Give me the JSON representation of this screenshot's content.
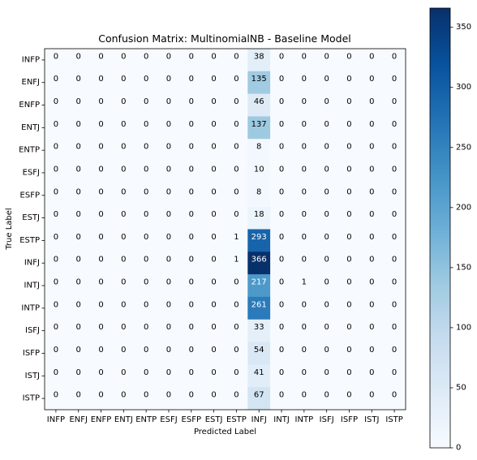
{
  "chart_data": {
    "type": "heatmap",
    "title": "Confusion Matrix: MultinomialNB - Baseline Model",
    "xlabel": "Predicted Label",
    "ylabel": "True Label",
    "x_categories": [
      "INFP",
      "ENFJ",
      "ENFP",
      "ENTJ",
      "ENTP",
      "ESFJ",
      "ESFP",
      "ESTJ",
      "ESTP",
      "INFJ",
      "INTJ",
      "INTP",
      "ISFJ",
      "ISFP",
      "ISTJ",
      "ISTP"
    ],
    "y_categories": [
      "INFP",
      "ENFJ",
      "ENFP",
      "ENTJ",
      "ENTP",
      "ESFJ",
      "ESFP",
      "ESTJ",
      "ESTP",
      "INFJ",
      "INTJ",
      "INTP",
      "ISFJ",
      "ISFP",
      "ISTJ",
      "ISTP"
    ],
    "matrix": [
      [
        0,
        0,
        0,
        0,
        0,
        0,
        0,
        0,
        0,
        38,
        0,
        0,
        0,
        0,
        0,
        0
      ],
      [
        0,
        0,
        0,
        0,
        0,
        0,
        0,
        0,
        0,
        135,
        0,
        0,
        0,
        0,
        0,
        0
      ],
      [
        0,
        0,
        0,
        0,
        0,
        0,
        0,
        0,
        0,
        46,
        0,
        0,
        0,
        0,
        0,
        0
      ],
      [
        0,
        0,
        0,
        0,
        0,
        0,
        0,
        0,
        0,
        137,
        0,
        0,
        0,
        0,
        0,
        0
      ],
      [
        0,
        0,
        0,
        0,
        0,
        0,
        0,
        0,
        0,
        8,
        0,
        0,
        0,
        0,
        0,
        0
      ],
      [
        0,
        0,
        0,
        0,
        0,
        0,
        0,
        0,
        0,
        10,
        0,
        0,
        0,
        0,
        0,
        0
      ],
      [
        0,
        0,
        0,
        0,
        0,
        0,
        0,
        0,
        0,
        8,
        0,
        0,
        0,
        0,
        0,
        0
      ],
      [
        0,
        0,
        0,
        0,
        0,
        0,
        0,
        0,
        0,
        18,
        0,
        0,
        0,
        0,
        0,
        0
      ],
      [
        0,
        0,
        0,
        0,
        0,
        0,
        0,
        0,
        1,
        293,
        0,
        0,
        0,
        0,
        0,
        0
      ],
      [
        0,
        0,
        0,
        0,
        0,
        0,
        0,
        0,
        1,
        366,
        0,
        0,
        0,
        0,
        0,
        0
      ],
      [
        0,
        0,
        0,
        0,
        0,
        0,
        0,
        0,
        0,
        217,
        0,
        1,
        0,
        0,
        0,
        0
      ],
      [
        0,
        0,
        0,
        0,
        0,
        0,
        0,
        0,
        0,
        261,
        0,
        0,
        0,
        0,
        0,
        0
      ],
      [
        0,
        0,
        0,
        0,
        0,
        0,
        0,
        0,
        0,
        33,
        0,
        0,
        0,
        0,
        0,
        0
      ],
      [
        0,
        0,
        0,
        0,
        0,
        0,
        0,
        0,
        0,
        54,
        0,
        0,
        0,
        0,
        0,
        0
      ],
      [
        0,
        0,
        0,
        0,
        0,
        0,
        0,
        0,
        0,
        41,
        0,
        0,
        0,
        0,
        0,
        0
      ],
      [
        0,
        0,
        0,
        0,
        0,
        0,
        0,
        0,
        0,
        67,
        0,
        0,
        0,
        0,
        0,
        0
      ]
    ],
    "colorscale": "Blues",
    "color_range": [
      0,
      366
    ],
    "colorbar_ticks": [
      0,
      50,
      100,
      150,
      200,
      250,
      300,
      350
    ],
    "grid": false
  }
}
